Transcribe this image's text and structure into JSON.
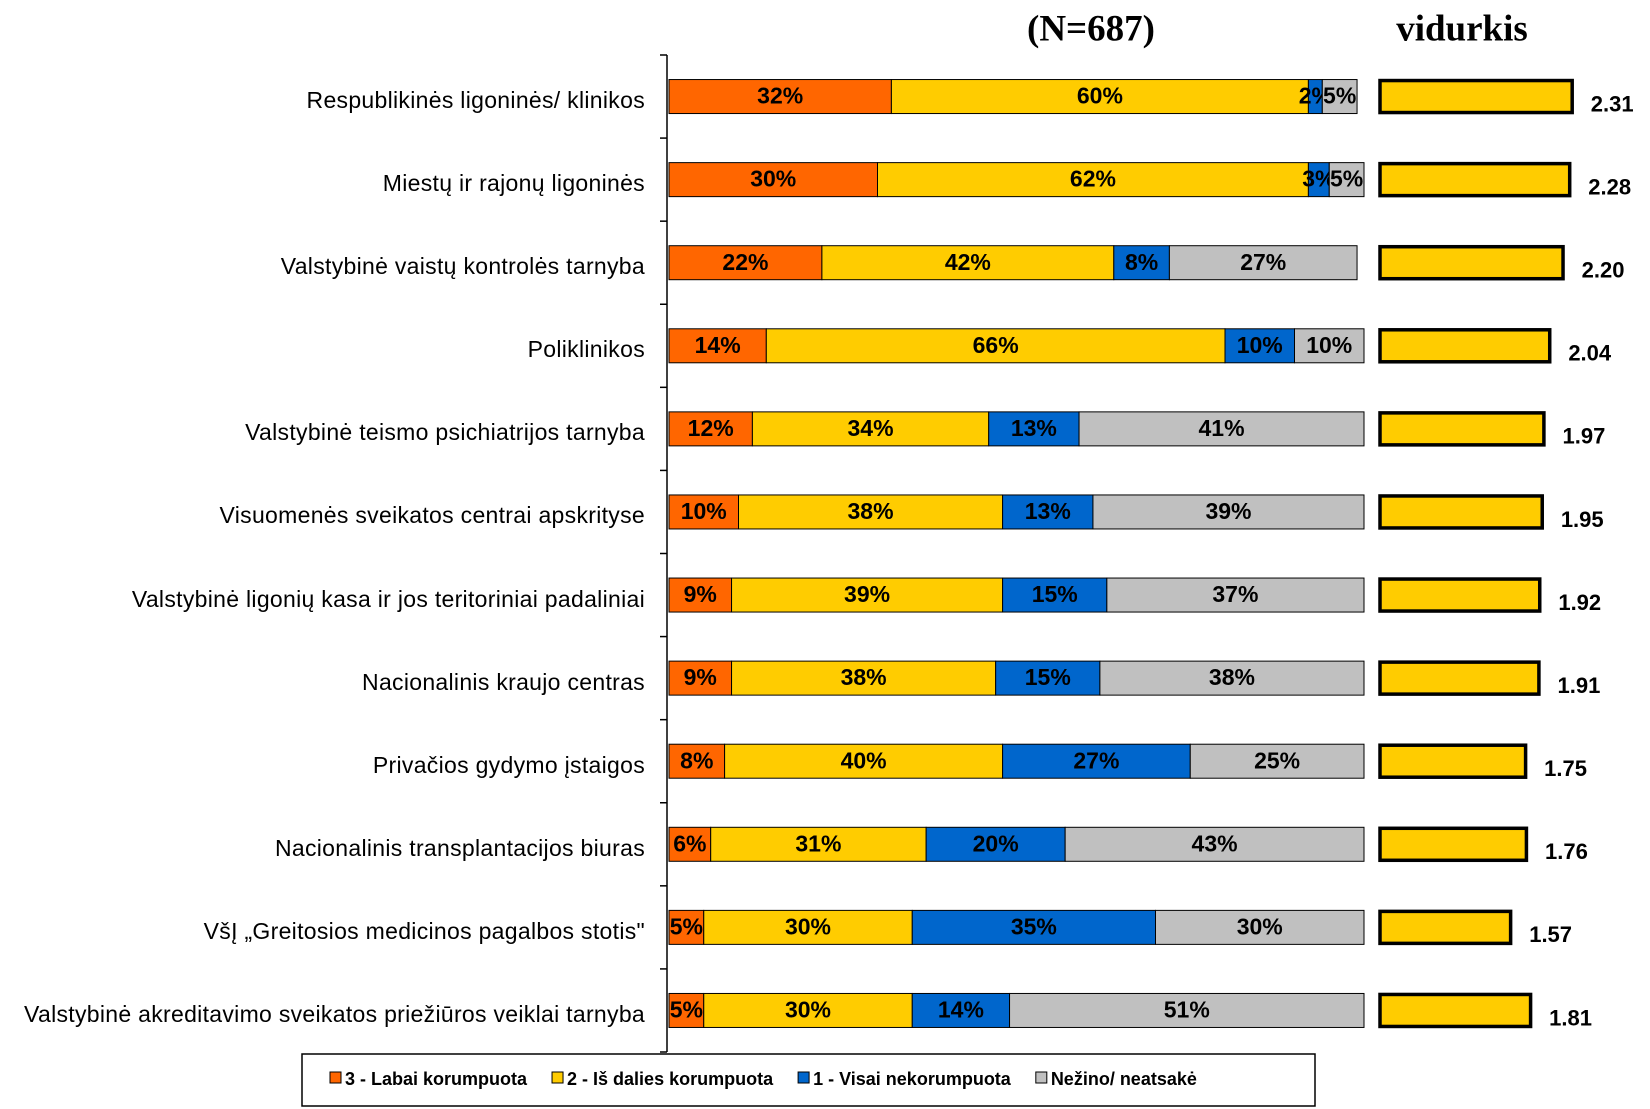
{
  "chart_data": [
    {
      "type": "stacked-bar",
      "title": "(N=687)",
      "categories": [
        "Respublikinės ligoninės/ klinikos",
        "Miestų ir rajonų ligoninės",
        "Valstybinė vaistų kontrolės tarnyba",
        "Poliklinikos",
        "Valstybinė teismo psichiatrijos tarnyba",
        "Visuomenės sveikatos centrai apskrityse",
        "Valstybinė ligonių kasa ir jos teritoriniai padaliniai",
        "Nacionalinis kraujo centras",
        "Privačios gydymo įstaigos",
        "Nacionalinis transplantacijos biuras",
        "VšĮ „Greitosios medicinos pagalbos stotis\"",
        "Valstybinė akreditavimo sveikatos priežiūros veiklai tarnyba"
      ],
      "xlim": [
        0,
        100
      ],
      "series": [
        {
          "name": "3 - Labai korumpuota",
          "color": "#FF6600",
          "values": [
            32,
            30,
            22,
            14,
            12,
            10,
            9,
            9,
            8,
            6,
            5,
            5
          ],
          "value_labels": [
            "32%",
            "30%",
            "22%",
            "14%",
            "12%",
            "10%",
            "9%",
            "9%",
            "8%",
            "6%",
            "5%",
            "5%"
          ]
        },
        {
          "name": "2 - Iš dalies korumpuota",
          "color": "#FFCC00",
          "values": [
            60,
            62,
            42,
            66,
            34,
            38,
            39,
            38,
            40,
            31,
            30,
            30
          ],
          "value_labels": [
            "60%",
            "62%",
            "42%",
            "66%",
            "34%",
            "38%",
            "39%",
            "38%",
            "40%",
            "31%",
            "30%",
            "30%"
          ]
        },
        {
          "name": "1 - Visai nekorumpuota",
          "color": "#0066CC",
          "values": [
            2,
            3,
            8,
            10,
            13,
            13,
            15,
            15,
            27,
            20,
            35,
            14
          ],
          "value_labels": [
            "2%",
            "3%",
            "8%",
            "10%",
            "13%",
            "13%",
            "15%",
            "15%",
            "27%",
            "20%",
            "35%",
            "14%"
          ]
        },
        {
          "name": "Nežino/ neatsakė",
          "color": "#C0C0C0",
          "values": [
            5,
            5,
            27,
            10,
            41,
            39,
            37,
            38,
            25,
            43,
            30,
            51
          ],
          "value_labels": [
            "5%",
            "5%",
            "27%",
            "10%",
            "41%",
            "39%",
            "37%",
            "38%",
            "25%",
            "43%",
            "30%",
            "51%"
          ]
        }
      ]
    },
    {
      "type": "bar",
      "title": "vidurkis",
      "color": "#FFCC00",
      "xlim": [
        0,
        2.5
      ],
      "values": [
        2.31,
        2.28,
        2.2,
        2.04,
        1.97,
        1.95,
        1.92,
        1.91,
        1.75,
        1.76,
        1.57,
        1.81
      ],
      "value_labels": [
        "2.31",
        "2.28",
        "2.20",
        "2.04",
        "1.97",
        "1.95",
        "1.92",
        "1.91",
        "1.75",
        "1.76",
        "1.57",
        "1.81"
      ]
    }
  ]
}
